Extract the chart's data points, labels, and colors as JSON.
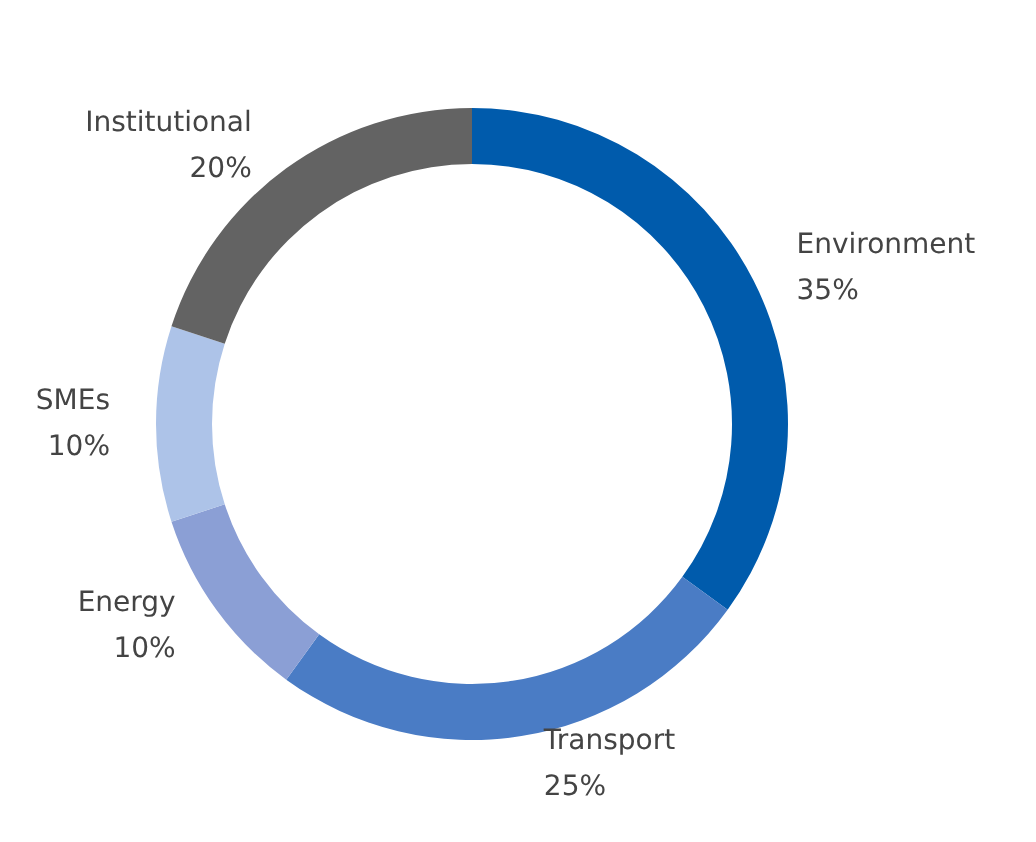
{
  "chart_data": {
    "type": "donut",
    "categories": [
      "Environment",
      "Transport",
      "Energy",
      "SMEs",
      "Institutional"
    ],
    "values": [
      35,
      25,
      10,
      10,
      20
    ],
    "value_labels": [
      "35%",
      "25%",
      "10%",
      "10%",
      "20%"
    ],
    "colors": [
      "#005bac",
      "#4a7cc5",
      "#8b9fd5",
      "#adc3e8",
      "#636363"
    ]
  }
}
